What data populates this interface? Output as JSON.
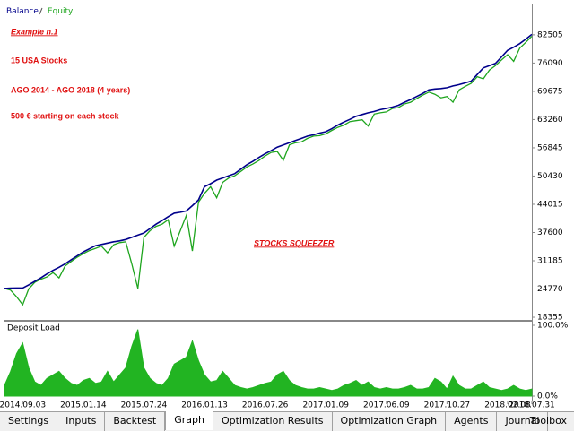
{
  "chart_data": [
    {
      "type": "line",
      "annotations": [
        "Example n.1",
        "15 USA Stocks",
        "AGO 2014 - AGO 2018 (4 years)",
        "500 € starting on each stock",
        "STOCKS SQUEEZER"
      ],
      "series": [
        {
          "name": "Balance",
          "color": "#00008b",
          "values": [
            24900,
            24950,
            25000,
            25000,
            25700,
            26500,
            27300,
            28200,
            29000,
            29700,
            30500,
            31400,
            32300,
            33200,
            33900,
            34600,
            34900,
            35200,
            35500,
            35700,
            36000,
            36500,
            37000,
            37500,
            38500,
            39500,
            40300,
            41200,
            42000,
            42200,
            42500,
            43700,
            45000,
            48000,
            48700,
            49500,
            50000,
            50500,
            51000,
            52000,
            53000,
            53800,
            54700,
            55500,
            56200,
            57000,
            57500,
            58000,
            58500,
            59000,
            59500,
            59800,
            60200,
            60500,
            61200,
            62000,
            62700,
            63300,
            64000,
            64400,
            64800,
            65100,
            65500,
            65800,
            66100,
            66500,
            67200,
            67800,
            68500,
            69200,
            70000,
            70200,
            70300,
            70500,
            70900,
            71200,
            71600,
            72000,
            73500,
            75000,
            75500,
            76000,
            77500,
            79000,
            79700,
            80500,
            81500,
            82600
          ]
        },
        {
          "name": "Equity",
          "color": "#1ea51e",
          "values": [
            24900,
            24500,
            23000,
            21200,
            24800,
            26300,
            27000,
            27500,
            28500,
            27300,
            30000,
            31000,
            32000,
            32800,
            33500,
            34000,
            34500,
            33000,
            34800,
            35300,
            35500,
            30500,
            24900,
            36500,
            38000,
            39000,
            39500,
            40500,
            34500,
            38000,
            41500,
            33400,
            44500,
            46500,
            48000,
            45500,
            49000,
            50000,
            50500,
            51500,
            52500,
            53200,
            54000,
            55000,
            55800,
            56000,
            54000,
            57500,
            58000,
            58200,
            59000,
            59500,
            59600,
            60000,
            60800,
            61500,
            62000,
            62800,
            63000,
            63200,
            61800,
            64500,
            64800,
            65000,
            65800,
            66000,
            66800,
            67200,
            68000,
            68800,
            69500,
            69000,
            68200,
            68500,
            67200,
            70000,
            70800,
            71500,
            73000,
            72500,
            74500,
            75500,
            76800,
            78000,
            76500,
            79500,
            80800,
            82200
          ]
        }
      ],
      "ylim": [
        17750,
        89200
      ],
      "yticks": [
        18355,
        24770,
        31185,
        37600,
        44015,
        50430,
        56845,
        63260,
        69675,
        76090,
        82505
      ]
    },
    {
      "type": "area",
      "title": "Deposit Load",
      "color": "#22b422",
      "categories": [
        null,
        null,
        null,
        "2014.09.03",
        null,
        null,
        null,
        null,
        null,
        null,
        null,
        null,
        null,
        "2015.01.14",
        null,
        null,
        null,
        null,
        null,
        null,
        null,
        null,
        null,
        "2015.07.24",
        null,
        null,
        null,
        null,
        null,
        null,
        null,
        null,
        null,
        "2016.01.13",
        null,
        null,
        null,
        null,
        null,
        null,
        null,
        null,
        null,
        "2016.07.26",
        null,
        null,
        null,
        null,
        null,
        null,
        null,
        null,
        null,
        "2017.01.09",
        null,
        null,
        null,
        null,
        null,
        null,
        null,
        null,
        null,
        "2017.06.09",
        null,
        null,
        null,
        null,
        null,
        null,
        null,
        null,
        null,
        "2017.10.27",
        null,
        null,
        null,
        null,
        null,
        null,
        null,
        null,
        null,
        "2018.02.08",
        null,
        null,
        null,
        "2018.07.31"
      ],
      "values": [
        15,
        35,
        60,
        75,
        40,
        20,
        15,
        25,
        30,
        35,
        25,
        18,
        15,
        22,
        25,
        18,
        20,
        35,
        20,
        30,
        40,
        70,
        94,
        40,
        25,
        18,
        15,
        25,
        45,
        50,
        55,
        78,
        50,
        30,
        20,
        22,
        35,
        25,
        15,
        12,
        10,
        12,
        15,
        18,
        20,
        30,
        35,
        22,
        15,
        12,
        10,
        10,
        12,
        10,
        8,
        10,
        15,
        18,
        22,
        15,
        20,
        12,
        10,
        12,
        10,
        10,
        12,
        15,
        10,
        10,
        12,
        25,
        20,
        10,
        28,
        15,
        10,
        10,
        15,
        20,
        12,
        10,
        8,
        10,
        15,
        10,
        8,
        10
      ],
      "ylim": [
        0,
        100
      ],
      "yticks": [
        {
          "value": 0,
          "label": "0.0%"
        },
        {
          "value": 100,
          "label": "100.0%"
        }
      ]
    }
  ],
  "tabs": [
    {
      "label": "Settings"
    },
    {
      "label": "Inputs"
    },
    {
      "label": "Backtest"
    },
    {
      "label": "Graph",
      "selected": true
    },
    {
      "label": "Optimization Results"
    },
    {
      "label": "Optimization Graph"
    },
    {
      "label": "Agents"
    },
    {
      "label": "Journal"
    }
  ],
  "toolbox": "Toolbox"
}
